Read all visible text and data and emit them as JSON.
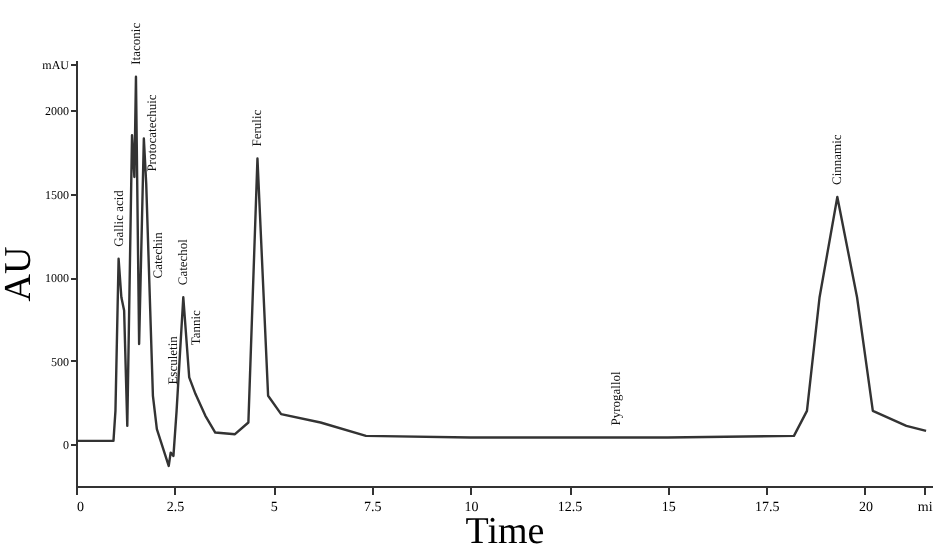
{
  "chart_data": {
    "type": "line",
    "xlabel": "Time",
    "ylabel": "AU",
    "x": [
      0,
      0.95,
      1.0,
      1.08,
      1.15,
      1.22,
      1.3,
      1.42,
      1.48,
      1.52,
      1.6,
      1.72,
      1.78,
      1.95,
      2.05,
      2.35,
      2.4,
      2.47,
      2.55,
      2.72,
      2.87,
      3.03,
      3.28,
      3.53,
      4.03,
      4.37,
      4.6,
      4.87,
      5.2,
      6.2,
      7.35,
      10,
      15,
      18.2,
      18.53,
      18.85,
      19.3,
      19.8,
      20.2,
      21.05,
      21.55
    ],
    "series": [
      {
        "color": "#333333",
        "values": [
          20,
          20,
          200,
          1110,
          880,
          800,
          110,
          1850,
          1600,
          2200,
          600,
          1830,
          1560,
          290,
          90,
          -130,
          -50,
          -70,
          200,
          880,
          400,
          300,
          170,
          70,
          60,
          130,
          1710,
          290,
          180,
          130,
          50,
          40,
          40,
          50,
          200,
          880,
          1480,
          880,
          200,
          110,
          80
        ]
      }
    ],
    "xlim": [
      0,
      21.7
    ],
    "xticks": [
      0,
      2.5,
      5,
      7.5,
      10,
      12.5,
      15,
      17.5,
      20,
      {
        "value": 21.5,
        "label": "mi"
      }
    ],
    "ylim": [
      -250,
      2300
    ],
    "yticks": [
      0,
      500,
      1000,
      1500,
      2000,
      {
        "value": 2275,
        "label": "mAU"
      }
    ],
    "grid": false,
    "annotations": [
      {
        "text": "Gallic acid",
        "x": 1.08,
        "y": 1110
      },
      {
        "text": "Itaconic",
        "x": 1.52,
        "y": 2200
      },
      {
        "text": "Protocatechuic",
        "x": 1.78,
        "y": 1560
      },
      {
        "text": "Catechin",
        "x": 2.07,
        "y": 920
      },
      {
        "text": "Esculetin",
        "x": 2.3,
        "y": 285
      },
      {
        "text": "Catechol",
        "x": 2.72,
        "y": 880
      },
      {
        "text": "Tannic",
        "x": 3.05,
        "y": 520
      },
      {
        "text": "Ferulic",
        "x": 4.6,
        "y": 1710
      },
      {
        "text": "Pyrogallol",
        "x": 13.7,
        "y": 40
      },
      {
        "text": "Cinnamic",
        "x": 19.3,
        "y": 1480
      }
    ]
  }
}
